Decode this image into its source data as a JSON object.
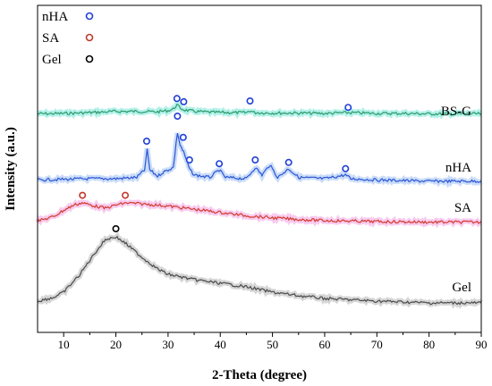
{
  "chart_data": {
    "type": "line",
    "xlabel": "2-Theta (degree)",
    "ylabel": "Intensity (a.u.)",
    "xlim": [
      5,
      90
    ],
    "x_ticks": [
      10,
      20,
      30,
      40,
      50,
      60,
      70,
      80,
      90
    ],
    "y_ticks_shown": false,
    "grid": false,
    "legend_position": "top-left",
    "legend": [
      {
        "name": "nHA",
        "marker": "circle",
        "color": "#1f3fd8"
      },
      {
        "name": "SA",
        "marker": "circle",
        "color": "#c0392b"
      },
      {
        "name": "Gel",
        "marker": "circle",
        "color": "#000000"
      }
    ],
    "series": [
      {
        "name": "BS-G",
        "color": "#2e9a6e",
        "shadow": "#7fe8d8",
        "x": [
          5,
          10,
          15,
          20,
          25,
          28,
          30,
          31,
          31.7,
          32.4,
          33,
          35,
          38,
          42,
          45,
          45.7,
          46.5,
          50,
          55,
          60,
          64.5,
          70,
          75,
          80,
          85,
          90
        ],
        "y": [
          4,
          4.5,
          5.5,
          7,
          7,
          6.5,
          8,
          10,
          15,
          11,
          9,
          7,
          6,
          5.5,
          5.5,
          8,
          5.5,
          5,
          5,
          4.5,
          5.5,
          4.5,
          4.5,
          4,
          4,
          4
        ],
        "peak_markers": [
          {
            "x": 31.7,
            "y": 23,
            "type": "nHA"
          },
          {
            "x": 33.0,
            "y": 19,
            "type": "nHA"
          },
          {
            "x": 45.7,
            "y": 20,
            "type": "nHA"
          },
          {
            "x": 64.5,
            "y": 12,
            "type": "nHA"
          }
        ]
      },
      {
        "name": "nHA",
        "color": "#2a55d4",
        "shadow": "#a7c4f5",
        "x": [
          5,
          10,
          15,
          20,
          24,
          25.5,
          26,
          26.5,
          28,
          29,
          31,
          31.8,
          32.3,
          33,
          33.5,
          34.2,
          35,
          38,
          39.8,
          41,
          45,
          46.7,
          48,
          49.5,
          51,
          53.1,
          55,
          60,
          64,
          65,
          70,
          80,
          90
        ],
        "y": [
          4,
          4.5,
          5,
          5,
          6,
          12,
          28,
          12,
          7,
          10,
          14,
          42,
          32,
          26,
          20,
          12,
          8,
          6,
          12,
          6,
          5,
          14,
          8,
          16,
          6,
          13,
          6,
          5,
          8,
          5,
          4,
          3,
          3
        ],
        "peak_markers": [
          {
            "x": 25.9,
            "y": 35,
            "type": "nHA"
          },
          {
            "x": 31.8,
            "y": 55,
            "type": "nHA"
          },
          {
            "x": 32.9,
            "y": 38,
            "type": "nHA"
          },
          {
            "x": 34.1,
            "y": 20,
            "type": "nHA"
          },
          {
            "x": 39.8,
            "y": 17,
            "type": "nHA"
          },
          {
            "x": 46.7,
            "y": 20,
            "type": "nHA"
          },
          {
            "x": 53.1,
            "y": 18,
            "type": "nHA"
          },
          {
            "x": 64.0,
            "y": 13,
            "type": "nHA"
          }
        ]
      },
      {
        "name": "SA",
        "color": "#d23c2e",
        "shadow": "#f4a9e4",
        "x": [
          5,
          8,
          10,
          12,
          13.5,
          16,
          18,
          20,
          22,
          25,
          30,
          35,
          40,
          45,
          50,
          55,
          60,
          70,
          80,
          90
        ],
        "y": [
          3,
          7,
          13,
          18,
          20,
          17,
          15,
          18,
          20,
          19,
          17,
          14,
          11,
          8,
          6,
          4.5,
          3.5,
          2.5,
          2,
          2
        ],
        "peak_markers": [
          {
            "x": 13.6,
            "y": 27,
            "type": "SA"
          },
          {
            "x": 21.8,
            "y": 27,
            "type": "SA"
          }
        ]
      },
      {
        "name": "Gel",
        "color": "#4a4a4a",
        "shadow": "#bbbbbb",
        "x": [
          5,
          8,
          10,
          13,
          16,
          18,
          20,
          22,
          25,
          28,
          30,
          35,
          40,
          45,
          50,
          55,
          60,
          70,
          80,
          90
        ],
        "y": [
          6,
          10,
          16,
          35,
          60,
          75,
          78,
          70,
          55,
          42,
          36,
          30,
          26,
          22,
          16,
          12,
          9,
          6,
          4,
          4
        ],
        "peak_markers": [
          {
            "x": 20,
            "y": 87,
            "type": "Gel"
          }
        ]
      }
    ]
  }
}
